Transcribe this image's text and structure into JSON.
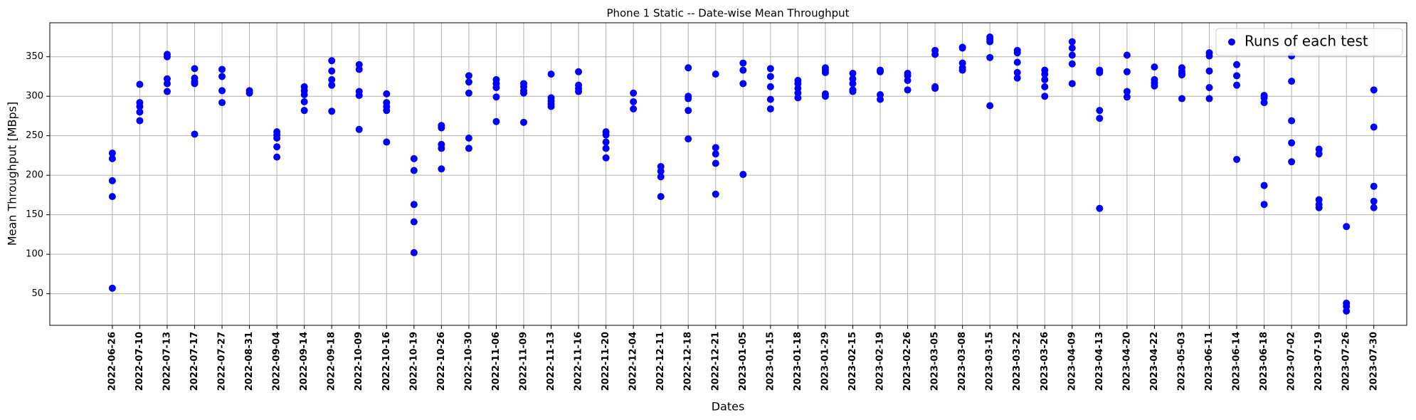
{
  "chart_data": {
    "type": "scatter",
    "title": "Phone 1 Static -- Date-wise Mean Throughput",
    "x_label": "Dates",
    "y_label": "Mean Throughput [MBps]",
    "categories": [
      "2022-06-26",
      "2022-07-10",
      "2022-07-13",
      "2022-07-17",
      "2022-07-27",
      "2022-08-31",
      "2022-09-04",
      "2022-09-14",
      "2022-09-18",
      "2022-10-09",
      "2022-10-16",
      "2022-10-19",
      "2022-10-26",
      "2022-10-30",
      "2022-11-06",
      "2022-11-09",
      "2022-11-13",
      "2022-11-16",
      "2022-11-20",
      "2022-12-04",
      "2022-12-11",
      "2022-12-18",
      "2022-12-21",
      "2023-01-05",
      "2023-01-15",
      "2023-01-18",
      "2023-01-29",
      "2023-02-15",
      "2023-02-19",
      "2023-02-26",
      "2023-03-05",
      "2023-03-08",
      "2023-03-15",
      "2023-03-22",
      "2023-03-26",
      "2023-04-09",
      "2023-04-13",
      "2023-04-20",
      "2023-04-22",
      "2023-05-03",
      "2023-06-11",
      "2023-06-14",
      "2023-06-18",
      "2023-07-02",
      "2023-07-19",
      "2023-07-26",
      "2023-07-30"
    ],
    "series": [
      {
        "name": "Runs of each test",
        "color": "#0000ff",
        "values": [
          [
            228,
            221,
            193,
            173,
            57
          ],
          [
            315,
            292,
            287,
            280,
            269
          ],
          [
            353,
            350,
            322,
            316,
            306
          ],
          [
            335,
            323,
            319,
            316,
            252
          ],
          [
            334,
            325,
            307,
            292
          ],
          [
            307,
            304
          ],
          [
            255,
            251,
            247,
            236,
            223
          ],
          [
            312,
            307,
            302,
            293,
            282
          ],
          [
            345,
            332,
            321,
            314,
            281
          ],
          [
            340,
            334,
            306,
            301,
            258
          ],
          [
            303,
            292,
            287,
            282,
            242
          ],
          [
            221,
            206,
            163,
            141,
            102
          ],
          [
            263,
            260,
            239,
            234,
            208
          ],
          [
            326,
            318,
            304,
            247,
            234
          ],
          [
            321,
            316,
            311,
            299,
            268
          ],
          [
            316,
            312,
            307,
            304,
            267
          ],
          [
            328,
            298,
            294,
            290,
            287
          ],
          [
            331,
            314,
            310,
            306
          ],
          [
            255,
            251,
            242,
            234,
            222
          ],
          [
            304,
            293,
            284
          ],
          [
            211,
            205,
            198,
            173
          ],
          [
            336,
            300,
            297,
            282,
            246
          ],
          [
            328,
            235,
            227,
            215,
            176
          ],
          [
            342,
            333,
            316,
            201
          ],
          [
            335,
            325,
            312,
            296,
            284
          ],
          [
            320,
            316,
            310,
            304,
            298
          ],
          [
            336,
            333,
            330,
            303,
            300
          ],
          [
            329,
            322,
            316,
            308,
            306
          ],
          [
            333,
            331,
            302,
            296
          ],
          [
            329,
            326,
            320,
            308
          ],
          [
            358,
            353,
            312,
            310
          ],
          [
            362,
            361,
            342,
            336,
            333
          ],
          [
            375,
            372,
            369,
            349,
            288
          ],
          [
            358,
            355,
            343,
            330,
            323
          ],
          [
            333,
            328,
            321,
            312,
            300
          ],
          [
            369,
            361,
            352,
            341,
            316
          ],
          [
            333,
            330,
            282,
            272,
            158
          ],
          [
            352,
            331,
            306,
            299
          ],
          [
            337,
            321,
            317,
            313
          ],
          [
            336,
            332,
            329,
            327,
            297
          ],
          [
            355,
            351,
            332,
            311,
            297
          ],
          [
            340,
            326,
            314,
            220
          ],
          [
            301,
            298,
            292,
            187,
            163
          ],
          [
            351,
            319,
            269,
            241,
            217
          ],
          [
            233,
            227,
            169,
            163,
            159
          ],
          [
            135,
            38,
            34,
            28
          ],
          [
            308,
            261,
            186,
            167,
            159
          ]
        ]
      }
    ],
    "ylim": [
      10,
      393
    ],
    "yticks": [
      50,
      100,
      150,
      200,
      250,
      300,
      350
    ],
    "grid": true,
    "legend": "upper right"
  }
}
